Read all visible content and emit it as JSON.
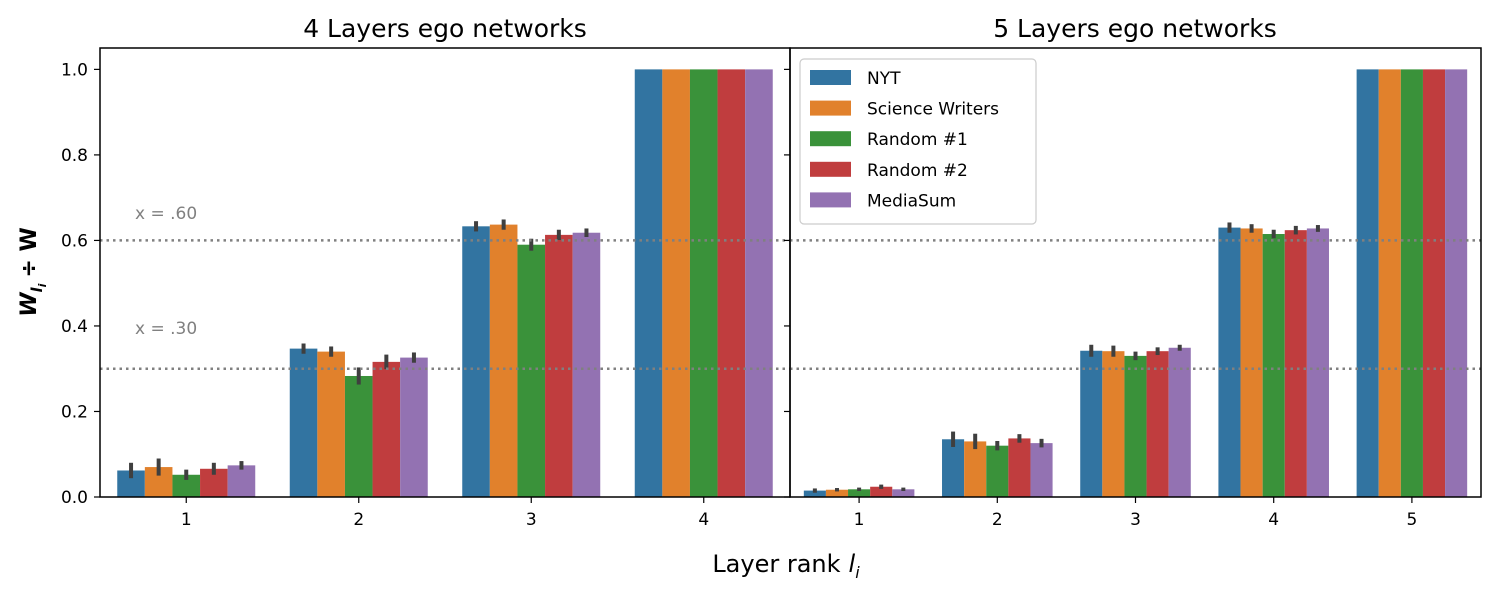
{
  "chart_data": [
    {
      "type": "bar",
      "title": "4 Layers ego networks",
      "categories": [
        "1",
        "2",
        "3",
        "4"
      ],
      "ylim": [
        0,
        1.05
      ],
      "yticks": [
        "0.0",
        "0.2",
        "0.4",
        "0.6",
        "0.8",
        "1.0"
      ],
      "series": [
        {
          "name": "NYT",
          "values": [
            0.062,
            0.347,
            0.633,
            1.0
          ],
          "errors": [
            0.018,
            0.012,
            0.012,
            0
          ]
        },
        {
          "name": "Science Writers",
          "values": [
            0.07,
            0.34,
            0.637,
            1.0
          ],
          "errors": [
            0.02,
            0.012,
            0.012,
            0
          ]
        },
        {
          "name": "Random #1",
          "values": [
            0.052,
            0.283,
            0.59,
            1.0
          ],
          "errors": [
            0.012,
            0.02,
            0.014,
            0
          ]
        },
        {
          "name": "Random #2",
          "values": [
            0.066,
            0.316,
            0.613,
            1.0
          ],
          "errors": [
            0.014,
            0.017,
            0.012,
            0
          ]
        },
        {
          "name": "MediaSum",
          "values": [
            0.074,
            0.326,
            0.618,
            1.0
          ],
          "errors": [
            0.01,
            0.012,
            0.01,
            0
          ]
        }
      ],
      "reference_lines": [
        {
          "y": 0.6,
          "label": "x = .60"
        },
        {
          "y": 0.3,
          "label": "x = .30"
        }
      ]
    },
    {
      "type": "bar",
      "title": "5 Layers ego networks",
      "categories": [
        "1",
        "2",
        "3",
        "4",
        "5"
      ],
      "ylim": [
        0,
        1.05
      ],
      "series": [
        {
          "name": "NYT",
          "values": [
            0.015,
            0.135,
            0.342,
            0.63,
            1.0
          ],
          "errors": [
            0.005,
            0.018,
            0.014,
            0.012,
            0
          ]
        },
        {
          "name": "Science Writers",
          "values": [
            0.017,
            0.13,
            0.341,
            0.628,
            1.0
          ],
          "errors": [
            0.004,
            0.018,
            0.013,
            0.01,
            0
          ]
        },
        {
          "name": "Random #1",
          "values": [
            0.018,
            0.12,
            0.33,
            0.615,
            1.0
          ],
          "errors": [
            0.004,
            0.011,
            0.01,
            0.01,
            0
          ]
        },
        {
          "name": "Random #2",
          "values": [
            0.024,
            0.137,
            0.341,
            0.624,
            1.0
          ],
          "errors": [
            0.005,
            0.01,
            0.009,
            0.01,
            0
          ]
        },
        {
          "name": "MediaSum",
          "values": [
            0.018,
            0.126,
            0.349,
            0.628,
            1.0
          ],
          "errors": [
            0.004,
            0.01,
            0.007,
            0.008,
            0
          ]
        }
      ],
      "reference_lines": [
        {
          "y": 0.6
        },
        {
          "y": 0.3
        }
      ]
    }
  ],
  "xlabel": "Layer rank",
  "xlabel_subscript": "i",
  "xlabel_italic": "l",
  "ylabel_main": "W",
  "ylabel_sub_l": "l",
  "ylabel_sub_i": "i",
  "ylabel_rest": "÷ W",
  "legend": {
    "placement": "upper-left of right panel",
    "entries": [
      "NYT",
      "Science Writers",
      "Random #1",
      "Random #2",
      "MediaSum"
    ]
  },
  "colors": {
    "NYT": "#3274a1",
    "Science Writers": "#e1812c",
    "Random #1": "#3a923a",
    "Random #2": "#c03d3e",
    "MediaSum": "#9372b2",
    "reference_line": "#808080",
    "error_bar": "#3f3f3f"
  }
}
